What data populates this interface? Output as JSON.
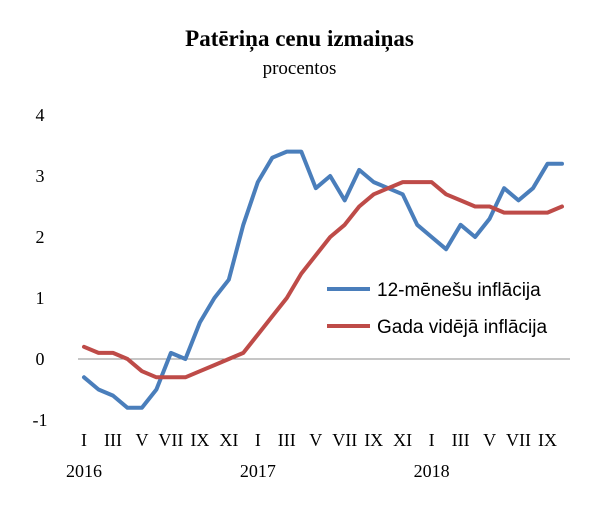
{
  "chart_data": {
    "type": "line",
    "title": "Patēriņa cenu izmaiņas",
    "subtitle": "procentos",
    "xlabel": "",
    "ylabel": "",
    "ylim": [
      -1,
      4
    ],
    "yticks": [
      -1,
      0,
      1,
      2,
      3,
      4
    ],
    "grid": false,
    "legend_position": "right",
    "x": [
      "2016-01",
      "2016-02",
      "2016-03",
      "2016-04",
      "2016-05",
      "2016-06",
      "2016-07",
      "2016-08",
      "2016-09",
      "2016-10",
      "2016-11",
      "2016-12",
      "2017-01",
      "2017-02",
      "2017-03",
      "2017-04",
      "2017-05",
      "2017-06",
      "2017-07",
      "2017-08",
      "2017-09",
      "2017-10",
      "2017-11",
      "2017-12",
      "2018-01",
      "2018-02",
      "2018-03",
      "2018-04",
      "2018-05",
      "2018-06",
      "2018-07",
      "2018-08",
      "2018-09",
      "2018-10"
    ],
    "x_tick_labels": [
      "I",
      "III",
      "V",
      "VII",
      "IX",
      "XI",
      "I",
      "III",
      "V",
      "VII",
      "IX",
      "XI",
      "I",
      "III",
      "V",
      "VII",
      "IX"
    ],
    "year_labels": [
      "2016",
      "2017",
      "2018"
    ],
    "series": [
      {
        "name": "12-mēnešu inflācija",
        "color": "#4a7ebb",
        "values": [
          -0.3,
          -0.5,
          -0.6,
          -0.8,
          -0.8,
          -0.5,
          0.1,
          0.0,
          0.6,
          1.0,
          1.3,
          2.2,
          2.9,
          3.3,
          3.4,
          3.4,
          2.8,
          3.0,
          2.6,
          3.1,
          2.9,
          2.8,
          2.7,
          2.2,
          2.0,
          1.8,
          2.2,
          2.0,
          2.3,
          2.8,
          2.6,
          2.8,
          3.2,
          3.2
        ]
      },
      {
        "name": "Gada vidējā inflācija",
        "color": "#be4b48",
        "values": [
          0.2,
          0.1,
          0.1,
          0.0,
          -0.2,
          -0.3,
          -0.3,
          -0.3,
          -0.2,
          -0.1,
          0.0,
          0.1,
          0.4,
          0.7,
          1.0,
          1.4,
          1.7,
          2.0,
          2.2,
          2.5,
          2.7,
          2.8,
          2.9,
          2.9,
          2.9,
          2.7,
          2.6,
          2.5,
          2.5,
          2.4,
          2.4,
          2.4,
          2.4,
          2.5
        ]
      }
    ]
  }
}
